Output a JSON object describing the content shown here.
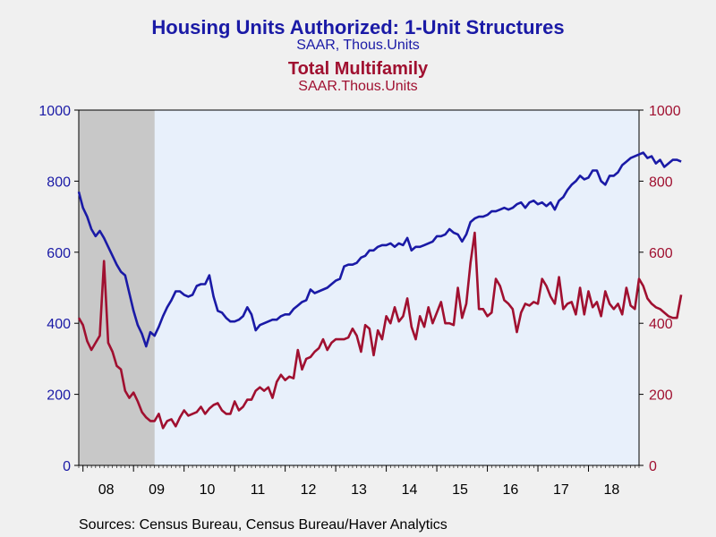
{
  "titles": {
    "title1": "Housing Units Authorized: 1-Unit Structures",
    "subtitle1": "SAAR, Thous.Units",
    "title2": "Total Multifamily",
    "subtitle2": "SAAR.Thous.Units"
  },
  "source": "Sources:  Census Bureau, Census Bureau/Haver Analytics",
  "colors": {
    "series1": "#1a1aa6",
    "series2": "#a01030",
    "recession": "#c8c8c8",
    "plot_bg": "#e8f0fb",
    "page_bg": "#f0f0f0"
  },
  "chart_data": {
    "type": "line",
    "x_start": "2007-12",
    "frequency": "monthly",
    "x_tick_labels": [
      "08",
      "09",
      "10",
      "11",
      "12",
      "13",
      "14",
      "15",
      "16",
      "17",
      "18"
    ],
    "left_axis": {
      "ylim": [
        0,
        1000
      ],
      "ticks": [
        0,
        200,
        400,
        600,
        800,
        1000
      ],
      "color": "#1a1aa6"
    },
    "right_axis": {
      "ylim": [
        0,
        1000
      ],
      "ticks": [
        0,
        200,
        400,
        600,
        800,
        1000
      ],
      "color": "#a01030"
    },
    "recession": {
      "start": "2007-12",
      "end": "2009-06"
    },
    "series": [
      {
        "name": "Housing Units Authorized: 1-Unit Structures",
        "axis": "left",
        "values": [
          770,
          725,
          700,
          665,
          645,
          660,
          640,
          615,
          590,
          565,
          545,
          535,
          485,
          435,
          395,
          370,
          335,
          375,
          365,
          390,
          420,
          445,
          465,
          490,
          490,
          480,
          475,
          480,
          505,
          510,
          510,
          535,
          475,
          435,
          430,
          415,
          405,
          405,
          410,
          420,
          445,
          425,
          380,
          395,
          400,
          405,
          410,
          410,
          420,
          425,
          425,
          440,
          450,
          460,
          465,
          495,
          485,
          490,
          495,
          500,
          510,
          520,
          525,
          560,
          565,
          565,
          570,
          585,
          590,
          605,
          605,
          615,
          620,
          620,
          625,
          615,
          625,
          620,
          640,
          605,
          615,
          615,
          620,
          625,
          630,
          645,
          645,
          650,
          665,
          655,
          650,
          630,
          650,
          685,
          695,
          700,
          700,
          705,
          715,
          715,
          720,
          725,
          720,
          725,
          735,
          740,
          725,
          740,
          745,
          735,
          740,
          730,
          740,
          720,
          745,
          755,
          775,
          790,
          800,
          815,
          805,
          810,
          830,
          830,
          800,
          790,
          815,
          815,
          825,
          845,
          855,
          865,
          870,
          875,
          880,
          865,
          870,
          850,
          860,
          840,
          850,
          860,
          860,
          855
        ]
      },
      {
        "name": "Total Multifamily",
        "axis": "right",
        "values": [
          415,
          395,
          350,
          325,
          345,
          365,
          575,
          345,
          320,
          280,
          270,
          210,
          190,
          205,
          180,
          150,
          135,
          125,
          125,
          145,
          105,
          125,
          130,
          110,
          135,
          155,
          140,
          145,
          150,
          165,
          145,
          160,
          170,
          175,
          155,
          145,
          145,
          180,
          155,
          165,
          185,
          185,
          210,
          220,
          210,
          220,
          190,
          235,
          255,
          240,
          250,
          245,
          325,
          270,
          300,
          305,
          320,
          330,
          355,
          325,
          345,
          355,
          355,
          355,
          360,
          385,
          365,
          320,
          395,
          385,
          310,
          380,
          355,
          420,
          400,
          445,
          405,
          420,
          470,
          390,
          355,
          420,
          390,
          445,
          400,
          430,
          460,
          400,
          400,
          395,
          500,
          415,
          455,
          570,
          655,
          440,
          440,
          420,
          430,
          525,
          505,
          465,
          455,
          440,
          375,
          430,
          455,
          450,
          460,
          455,
          525,
          505,
          475,
          455,
          530,
          440,
          455,
          460,
          425,
          500,
          425,
          490,
          445,
          460,
          420,
          490,
          455,
          440,
          455,
          425,
          500,
          450,
          440,
          525,
          505,
          470,
          455,
          445,
          440,
          430,
          420,
          415,
          415,
          480
        ]
      }
    ],
    "grid": false,
    "legend": "none"
  }
}
